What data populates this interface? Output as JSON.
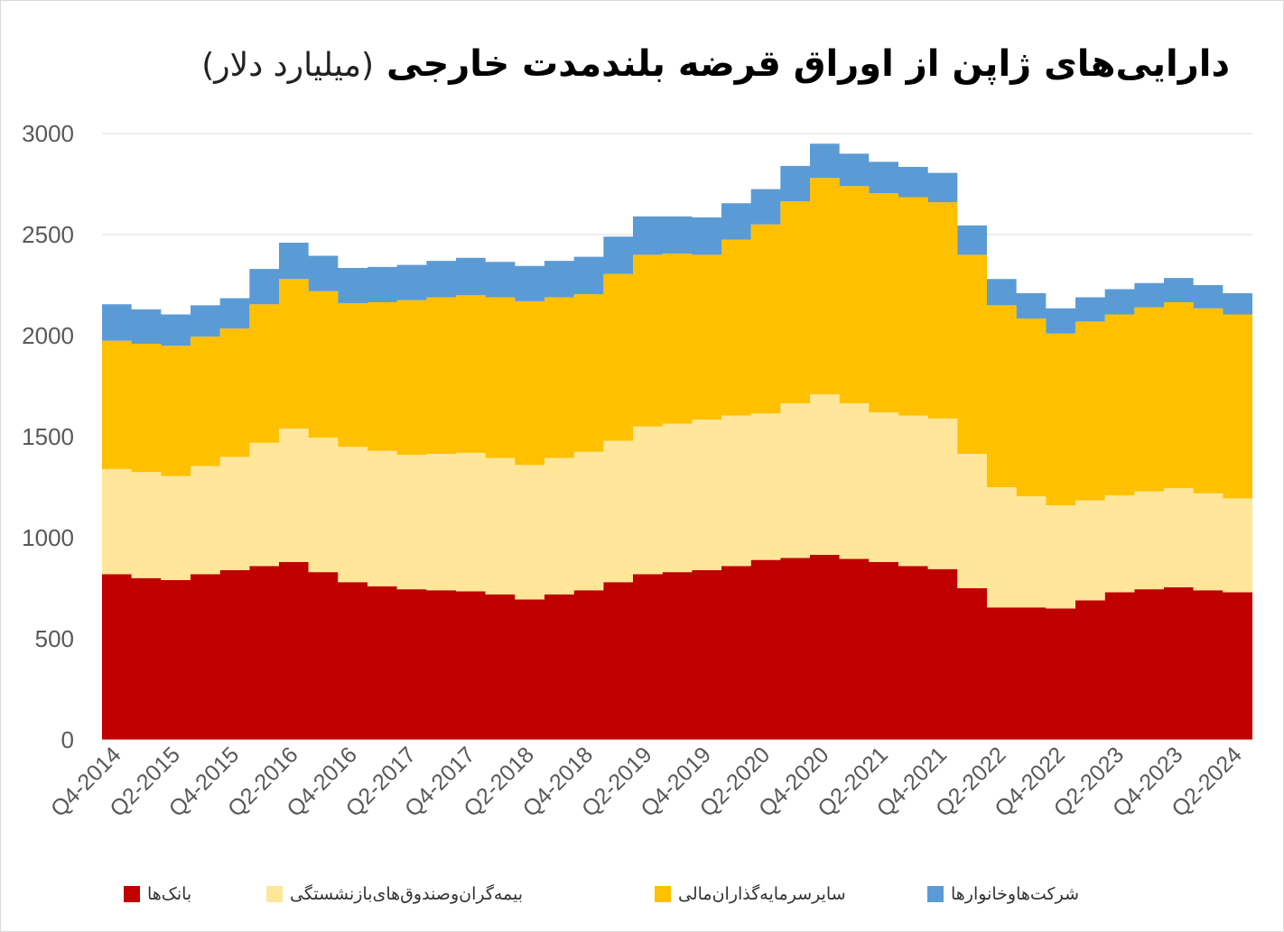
{
  "chart_data": {
    "type": "area",
    "stacked": true,
    "title": "دارایی‌های ژاپن از اوراق قرضه بلندمدت خارجی",
    "unit": "(میلیارد دلار)",
    "x": [
      "Q4-2014",
      "Q1-2015",
      "Q2-2015",
      "Q3-2015",
      "Q4-2015",
      "Q1-2016",
      "Q2-2016",
      "Q3-2016",
      "Q4-2016",
      "Q1-2017",
      "Q2-2017",
      "Q3-2017",
      "Q4-2017",
      "Q1-2018",
      "Q2-2018",
      "Q3-2018",
      "Q4-2018",
      "Q1-2019",
      "Q2-2019",
      "Q3-2019",
      "Q4-2019",
      "Q1-2020",
      "Q2-2020",
      "Q3-2020",
      "Q4-2020",
      "Q1-2021",
      "Q2-2021",
      "Q3-2021",
      "Q4-2021",
      "Q1-2022",
      "Q2-2022",
      "Q3-2022",
      "Q4-2022",
      "Q1-2023",
      "Q2-2023",
      "Q3-2023",
      "Q4-2023",
      "Q1-2024",
      "Q2-2024"
    ],
    "x_tick_labels": [
      "Q4-2014",
      "Q2-2015",
      "Q4-2015",
      "Q2-2016",
      "Q4-2016",
      "Q2-2017",
      "Q4-2017",
      "Q2-2018",
      "Q4-2018",
      "Q2-2019",
      "Q4-2019",
      "Q2-2020",
      "Q4-2020",
      "Q2-2021",
      "Q4-2021",
      "Q2-2022",
      "Q4-2022",
      "Q2-2023",
      "Q4-2023",
      "Q2-2024"
    ],
    "y_ticks": [
      0,
      500,
      1000,
      1500,
      2000,
      2500,
      3000
    ],
    "ylim": [
      0,
      3000
    ],
    "grid": true,
    "legend_position": "bottom",
    "series": [
      {
        "name": "بانک‌ها",
        "color": "#C00000",
        "values": [
          820,
          800,
          790,
          820,
          840,
          860,
          880,
          830,
          780,
          760,
          745,
          740,
          735,
          720,
          695,
          720,
          740,
          780,
          820,
          830,
          840,
          860,
          890,
          900,
          915,
          895,
          880,
          860,
          845,
          750,
          655,
          655,
          650,
          690,
          730,
          745,
          755,
          740,
          730
        ]
      },
      {
        "name": "بیمه‌گران‌وصندوق‌های‌بازنشستگی",
        "color": "#FFE699",
        "values": [
          520,
          525,
          515,
          535,
          560,
          610,
          660,
          665,
          670,
          670,
          665,
          675,
          685,
          675,
          665,
          675,
          685,
          700,
          730,
          735,
          745,
          745,
          725,
          765,
          795,
          770,
          740,
          745,
          745,
          665,
          595,
          550,
          510,
          495,
          480,
          485,
          490,
          480,
          465
        ]
      },
      {
        "name": "سایرسرمایه‌گذاران‌مالی",
        "color": "#FFC000",
        "values": [
          635,
          635,
          645,
          640,
          635,
          685,
          740,
          725,
          710,
          735,
          765,
          775,
          780,
          795,
          810,
          795,
          780,
          825,
          850,
          840,
          815,
          870,
          935,
          1000,
          1070,
          1075,
          1085,
          1080,
          1070,
          985,
          900,
          880,
          850,
          885,
          895,
          910,
          920,
          915,
          910
        ]
      },
      {
        "name": "شرکت‌هاوخانوارها",
        "color": "#5B9BD5",
        "values": [
          180,
          170,
          155,
          155,
          150,
          175,
          180,
          175,
          175,
          175,
          175,
          180,
          185,
          175,
          175,
          180,
          185,
          185,
          190,
          185,
          185,
          180,
          175,
          175,
          170,
          160,
          155,
          150,
          145,
          145,
          130,
          125,
          125,
          120,
          125,
          120,
          120,
          115,
          105
        ]
      }
    ]
  }
}
